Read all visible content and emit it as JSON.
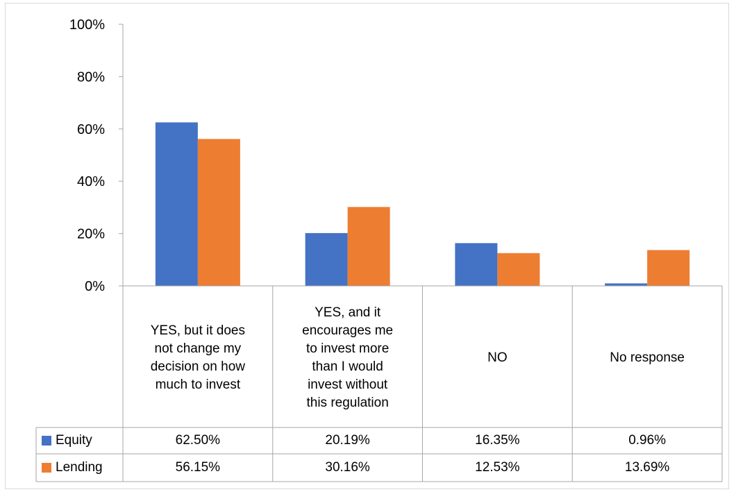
{
  "chart_data": {
    "type": "bar",
    "categories": [
      "YES, but it does not change my decision on how much to invest",
      "YES, and it encourages me to invest more than I would invest without this regulation",
      "NO",
      "No response"
    ],
    "category_lines": [
      [
        "YES, but it does",
        "not change my",
        "decision on how",
        "much to invest"
      ],
      [
        "YES, and it",
        "encourages me",
        "to invest more",
        "than I would",
        "invest without",
        "this regulation"
      ],
      [
        "NO"
      ],
      [
        "No response"
      ]
    ],
    "series": [
      {
        "name": "Equity",
        "values": [
          62.5,
          20.19,
          16.35,
          0.96
        ],
        "labels": [
          "62.50%",
          "20.19%",
          "16.35%",
          "0.96%"
        ],
        "color": "#4472C4"
      },
      {
        "name": "Lending",
        "values": [
          56.15,
          30.16,
          12.53,
          13.69
        ],
        "labels": [
          "56.15%",
          "30.16%",
          "12.53%",
          "13.69%"
        ],
        "color": "#ED7D31"
      }
    ],
    "y_ticks": [
      "0%",
      "20%",
      "40%",
      "60%",
      "80%",
      "100%"
    ],
    "ylim": [
      0,
      100
    ],
    "legend": "data-table",
    "grid": false
  }
}
